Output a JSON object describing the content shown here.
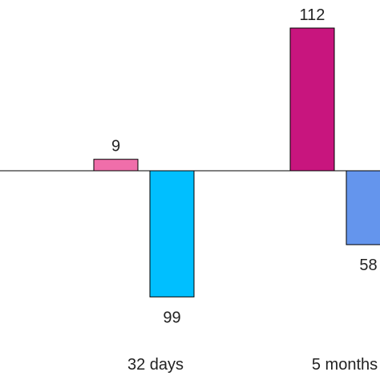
{
  "chart_data": {
    "type": "bar",
    "categories": [
      "32 days",
      "5 months"
    ],
    "series": [
      {
        "values": [
          9,
          112
        ],
        "signs": [
          1,
          1
        ],
        "colors": [
          "#f06eaa",
          "#c8157e"
        ]
      },
      {
        "values": [
          99,
          58
        ],
        "signs": [
          -1,
          -1
        ],
        "colors": [
          "#00bfff",
          "#6495ed"
        ]
      }
    ],
    "data_labels": [
      [
        "9",
        "112"
      ],
      [
        "99",
        "58"
      ]
    ],
    "ylim": [
      -112,
      112
    ],
    "grid": false,
    "legend": "none",
    "title": "",
    "xlabel": "",
    "ylabel": ""
  }
}
